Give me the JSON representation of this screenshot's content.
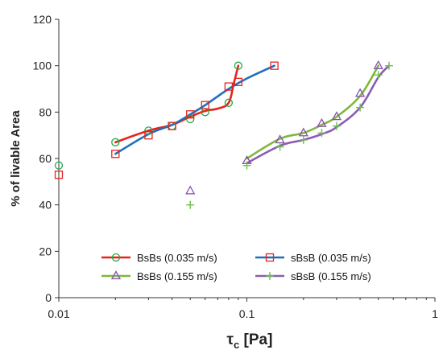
{
  "chart_data": {
    "type": "line",
    "xscale": "log",
    "xlim": [
      0.01,
      1
    ],
    "ylim": [
      0,
      120
    ],
    "xticks": [
      0.01,
      0.1,
      1
    ],
    "xtick_labels": [
      "0.01",
      "0.1",
      "1"
    ],
    "yticks": [
      0,
      20,
      40,
      60,
      80,
      100,
      120
    ],
    "ytick_labels": [
      "0",
      "20",
      "40",
      "60",
      "80",
      "100",
      "120"
    ],
    "xlabel": "τc [Pa]",
    "xlabel_main": "τ",
    "xlabel_sub": "c",
    "xlabel_rest": " [Pa]",
    "ylabel": "% of livable Area",
    "grid": false,
    "legend_position": "bottom",
    "series": [
      {
        "name": "BsBs (0.035 m/s)",
        "color": "#e8231c",
        "marker": "circle",
        "marker_color": "#22a84a",
        "points": [
          [
            0.01,
            57
          ],
          [
            0.02,
            67
          ],
          [
            0.03,
            72
          ],
          [
            0.04,
            74
          ],
          [
            0.05,
            77
          ],
          [
            0.06,
            80
          ],
          [
            0.08,
            84
          ],
          [
            0.09,
            100
          ]
        ],
        "line_points": [
          [
            0.02,
            67
          ],
          [
            0.03,
            72
          ],
          [
            0.04,
            74.5
          ],
          [
            0.05,
            78
          ],
          [
            0.06,
            80.5
          ],
          [
            0.07,
            81.5
          ],
          [
            0.08,
            84
          ],
          [
            0.085,
            92
          ],
          [
            0.09,
            100
          ]
        ]
      },
      {
        "name": "sBsB (0.035 m/s)",
        "color": "#1f6fbf",
        "marker": "square",
        "marker_color": "#e8231c",
        "points": [
          [
            0.01,
            53
          ],
          [
            0.02,
            62
          ],
          [
            0.03,
            70
          ],
          [
            0.04,
            74
          ],
          [
            0.05,
            79
          ],
          [
            0.06,
            83
          ],
          [
            0.08,
            91
          ],
          [
            0.09,
            93
          ],
          [
            0.14,
            100
          ]
        ],
        "line_points": [
          [
            0.02,
            62
          ],
          [
            0.03,
            70.5
          ],
          [
            0.04,
            74.5
          ],
          [
            0.05,
            79
          ],
          [
            0.06,
            83
          ],
          [
            0.08,
            90
          ],
          [
            0.1,
            94.5
          ],
          [
            0.14,
            100
          ]
        ]
      },
      {
        "name": "BsBs (0.155 m/s)",
        "color": "#7fb83e",
        "marker": "triangle",
        "marker_color": "#8a4fb0",
        "points": [
          [
            0.05,
            46
          ],
          [
            0.1,
            59
          ],
          [
            0.15,
            68
          ],
          [
            0.2,
            71
          ],
          [
            0.25,
            75
          ],
          [
            0.3,
            78
          ],
          [
            0.4,
            88
          ],
          [
            0.5,
            100
          ]
        ],
        "line_points": [
          [
            0.1,
            60
          ],
          [
            0.15,
            68.5
          ],
          [
            0.2,
            71
          ],
          [
            0.25,
            74.5
          ],
          [
            0.3,
            78
          ],
          [
            0.4,
            87
          ],
          [
            0.5,
            100
          ]
        ]
      },
      {
        "name": "sBsB (0.155 m/s)",
        "color": "#8a5db3",
        "marker": "plus",
        "marker_color": "#6cc24a",
        "points": [
          [
            0.05,
            40
          ],
          [
            0.1,
            57
          ],
          [
            0.15,
            65
          ],
          [
            0.2,
            68
          ],
          [
            0.25,
            71
          ],
          [
            0.3,
            74
          ],
          [
            0.4,
            82
          ],
          [
            0.5,
            96
          ],
          [
            0.57,
            100
          ]
        ],
        "line_points": [
          [
            0.1,
            58
          ],
          [
            0.15,
            65.5
          ],
          [
            0.2,
            68
          ],
          [
            0.25,
            70.5
          ],
          [
            0.3,
            73.5
          ],
          [
            0.4,
            82
          ],
          [
            0.5,
            95
          ],
          [
            0.57,
            100
          ]
        ]
      }
    ]
  }
}
